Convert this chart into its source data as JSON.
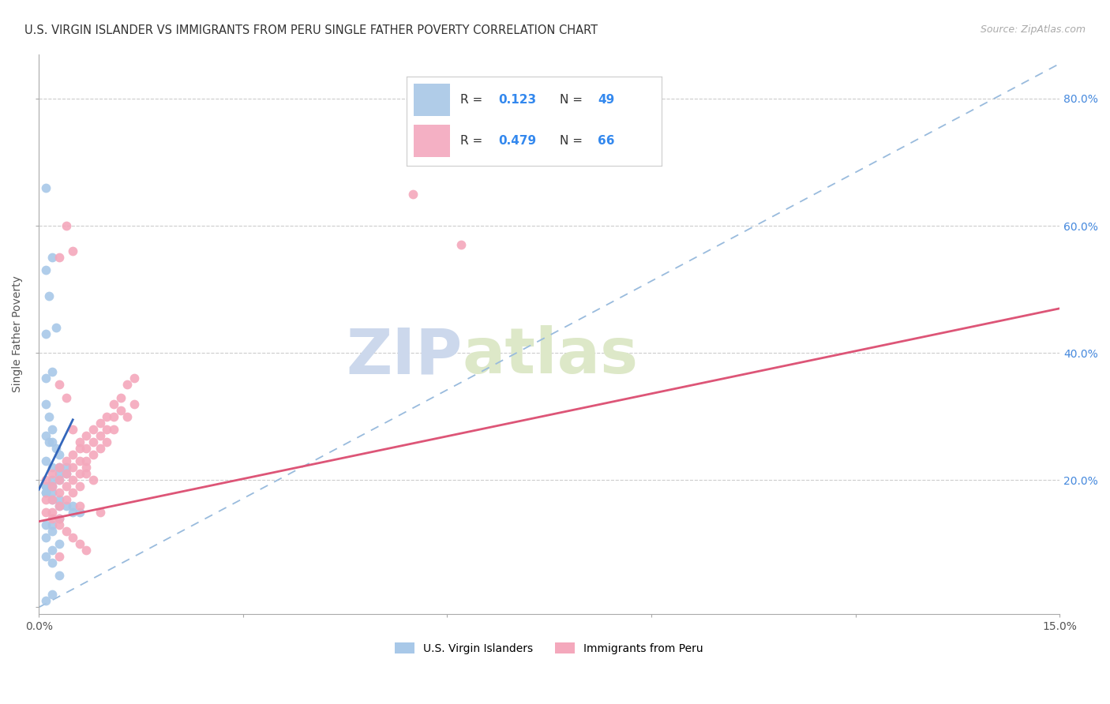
{
  "title": "U.S. VIRGIN ISLANDER VS IMMIGRANTS FROM PERU SINGLE FATHER POVERTY CORRELATION CHART",
  "source": "Source: ZipAtlas.com",
  "ylabel": "Single Father Poverty",
  "xlim": [
    0.0,
    0.15
  ],
  "ylim": [
    -0.01,
    0.87
  ],
  "ytick_vals": [
    0.0,
    0.2,
    0.4,
    0.6,
    0.8
  ],
  "right_yticklabels": [
    "",
    "20.0%",
    "40.0%",
    "60.0%",
    "80.0%"
  ],
  "xtick_vals": [
    0.0,
    0.03,
    0.06,
    0.09,
    0.12,
    0.15
  ],
  "xticklabels": [
    "0.0%",
    "",
    "",
    "",
    "",
    "15.0%"
  ],
  "series1_label": "U.S. Virgin Islanders",
  "series1_color": "#a8c8e8",
  "series2_label": "Immigrants from Peru",
  "series2_color": "#f4a8bc",
  "legend_R1": "0.123",
  "legend_N1": "49",
  "legend_R2": "0.479",
  "legend_N2": "66",
  "blue_x": [
    0.001,
    0.002,
    0.001,
    0.0015,
    0.0025,
    0.001,
    0.002,
    0.001,
    0.001,
    0.0015,
    0.002,
    0.001,
    0.0015,
    0.002,
    0.0025,
    0.003,
    0.001,
    0.002,
    0.003,
    0.004,
    0.003,
    0.004,
    0.003,
    0.002,
    0.001,
    0.001,
    0.002,
    0.001,
    0.001,
    0.002,
    0.002,
    0.003,
    0.003,
    0.004,
    0.005,
    0.005,
    0.006,
    0.003,
    0.002,
    0.001,
    0.002,
    0.001,
    0.003,
    0.002,
    0.001,
    0.002,
    0.003,
    0.002,
    0.001
  ],
  "blue_y": [
    0.66,
    0.55,
    0.53,
    0.49,
    0.44,
    0.43,
    0.37,
    0.36,
    0.32,
    0.3,
    0.28,
    0.27,
    0.26,
    0.26,
    0.25,
    0.24,
    0.23,
    0.22,
    0.22,
    0.22,
    0.21,
    0.21,
    0.2,
    0.2,
    0.19,
    0.19,
    0.19,
    0.18,
    0.18,
    0.18,
    0.17,
    0.17,
    0.16,
    0.16,
    0.16,
    0.15,
    0.15,
    0.14,
    0.13,
    0.13,
    0.12,
    0.11,
    0.1,
    0.09,
    0.08,
    0.07,
    0.05,
    0.02,
    0.01
  ],
  "pink_x": [
    0.001,
    0.001,
    0.001,
    0.002,
    0.002,
    0.002,
    0.002,
    0.003,
    0.003,
    0.003,
    0.003,
    0.003,
    0.004,
    0.004,
    0.004,
    0.004,
    0.005,
    0.005,
    0.005,
    0.005,
    0.006,
    0.006,
    0.006,
    0.006,
    0.007,
    0.007,
    0.007,
    0.007,
    0.008,
    0.008,
    0.008,
    0.009,
    0.009,
    0.009,
    0.01,
    0.01,
    0.01,
    0.011,
    0.011,
    0.011,
    0.012,
    0.012,
    0.013,
    0.013,
    0.014,
    0.014,
    0.055,
    0.062,
    0.002,
    0.003,
    0.004,
    0.005,
    0.006,
    0.007,
    0.003,
    0.004,
    0.005,
    0.006,
    0.007,
    0.008,
    0.004,
    0.005,
    0.003,
    0.006,
    0.009,
    0.003
  ],
  "pink_y": [
    0.2,
    0.17,
    0.15,
    0.21,
    0.19,
    0.17,
    0.15,
    0.22,
    0.2,
    0.18,
    0.16,
    0.14,
    0.23,
    0.21,
    0.19,
    0.17,
    0.24,
    0.22,
    0.2,
    0.18,
    0.25,
    0.23,
    0.21,
    0.19,
    0.27,
    0.25,
    0.23,
    0.21,
    0.28,
    0.26,
    0.24,
    0.29,
    0.27,
    0.25,
    0.3,
    0.28,
    0.26,
    0.32,
    0.3,
    0.28,
    0.33,
    0.31,
    0.35,
    0.3,
    0.36,
    0.32,
    0.65,
    0.57,
    0.14,
    0.13,
    0.12,
    0.11,
    0.1,
    0.09,
    0.35,
    0.33,
    0.28,
    0.26,
    0.22,
    0.2,
    0.6,
    0.56,
    0.55,
    0.16,
    0.15,
    0.08
  ],
  "pink_line_x": [
    0.0,
    0.15
  ],
  "pink_line_y": [
    0.135,
    0.47
  ],
  "blue_line_x": [
    0.0,
    0.005
  ],
  "blue_line_y": [
    0.185,
    0.295
  ],
  "ref_line_x": [
    0.0,
    0.15
  ],
  "ref_line_y": [
    0.0,
    0.855
  ],
  "watermark_left": "ZIP",
  "watermark_right": "atlas",
  "bg_color": "#ffffff",
  "grid_color": "#cccccc",
  "title_fontsize": 10.5,
  "tick_fontsize": 10,
  "axis_label_fontsize": 10
}
